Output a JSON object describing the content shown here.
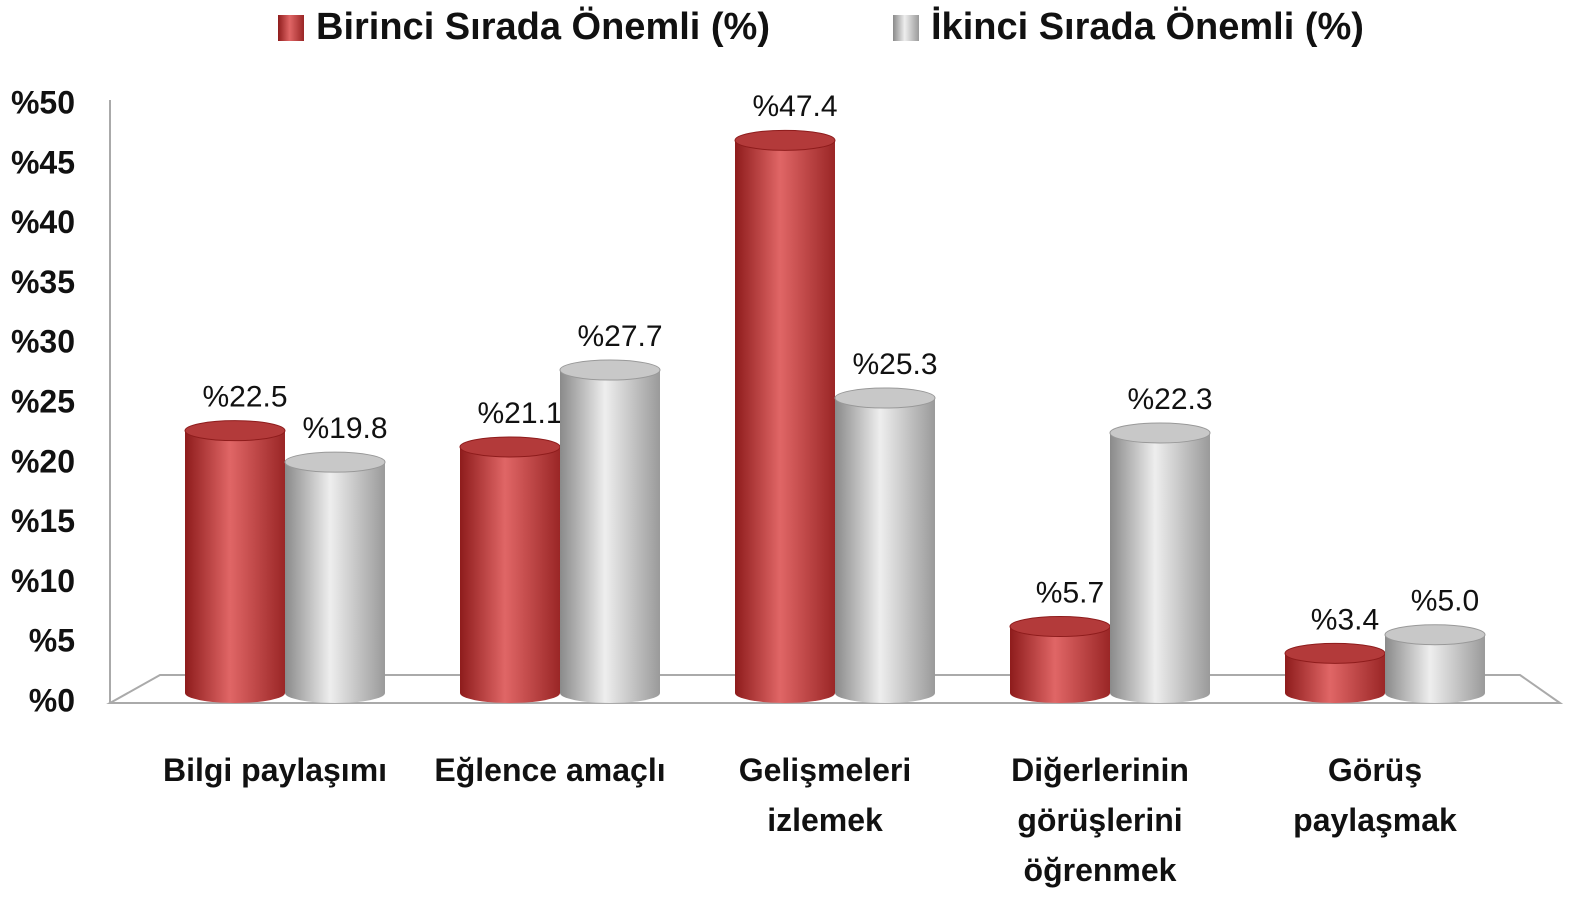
{
  "chart_data": {
    "type": "bar",
    "categories": [
      "Bilgi paylaşımı",
      "Eğlence amaçlı",
      "Gelişmeleri\nizlemek",
      "Diğerlerinin\ngörüşlerini\nöğrenmek",
      "Görüş\npaylaşmak"
    ],
    "series": [
      {
        "name": "Birinci Sırada Önemli (%)",
        "color": "#c0392b",
        "values": [
          22.5,
          21.1,
          47.4,
          5.7,
          3.4
        ],
        "value_labels": [
          "%22.5",
          "%21.1",
          "%47.4",
          "%5.7",
          "%3.4"
        ]
      },
      {
        "name": "İkinci Sırada Önemli (%)",
        "color": "#bdbdbd",
        "values": [
          19.8,
          27.7,
          25.3,
          22.3,
          5.0
        ],
        "value_labels": [
          "%19.8",
          "%27.7",
          "%25.3",
          "%22.3",
          "%5.0"
        ]
      }
    ],
    "ylim": [
      0,
      50
    ],
    "yticks": [
      {
        "value": 0,
        "label": "%0"
      },
      {
        "value": 5,
        "label": "%5"
      },
      {
        "value": 10,
        "label": "%10"
      },
      {
        "value": 15,
        "label": "%15"
      },
      {
        "value": 20,
        "label": "%20"
      },
      {
        "value": 25,
        "label": "%25"
      },
      {
        "value": 30,
        "label": "%30"
      },
      {
        "value": 35,
        "label": "%35"
      },
      {
        "value": 40,
        "label": "%40"
      },
      {
        "value": 45,
        "label": "%45"
      },
      {
        "value": 50,
        "label": "%50"
      }
    ],
    "legend": "top"
  }
}
